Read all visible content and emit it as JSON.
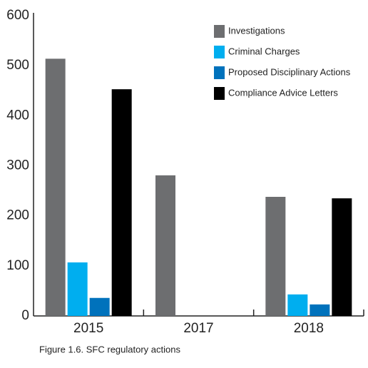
{
  "chart_data": {
    "type": "bar",
    "caption": "Figure 1.6. SFC regulatory actions",
    "categories": [
      "2015",
      "2017",
      "2018"
    ],
    "series": [
      {
        "name": "Investigations",
        "color": "#6d6e70",
        "values": [
          514,
          281,
          238
        ]
      },
      {
        "name": "Criminal Charges",
        "color": "#00aeef",
        "values": [
          107,
          null,
          43
        ]
      },
      {
        "name": "Proposed Disciplinary Actions",
        "color": "#0072bc",
        "values": [
          36,
          null,
          23
        ]
      },
      {
        "name": "Compliance Advice Letters",
        "color": "#000000",
        "values": [
          453,
          null,
          235
        ]
      }
    ],
    "ylim": [
      0,
      600
    ],
    "yticks": [
      0,
      100,
      200,
      300,
      400,
      500,
      600
    ],
    "grid": false,
    "legend": "top-right"
  }
}
